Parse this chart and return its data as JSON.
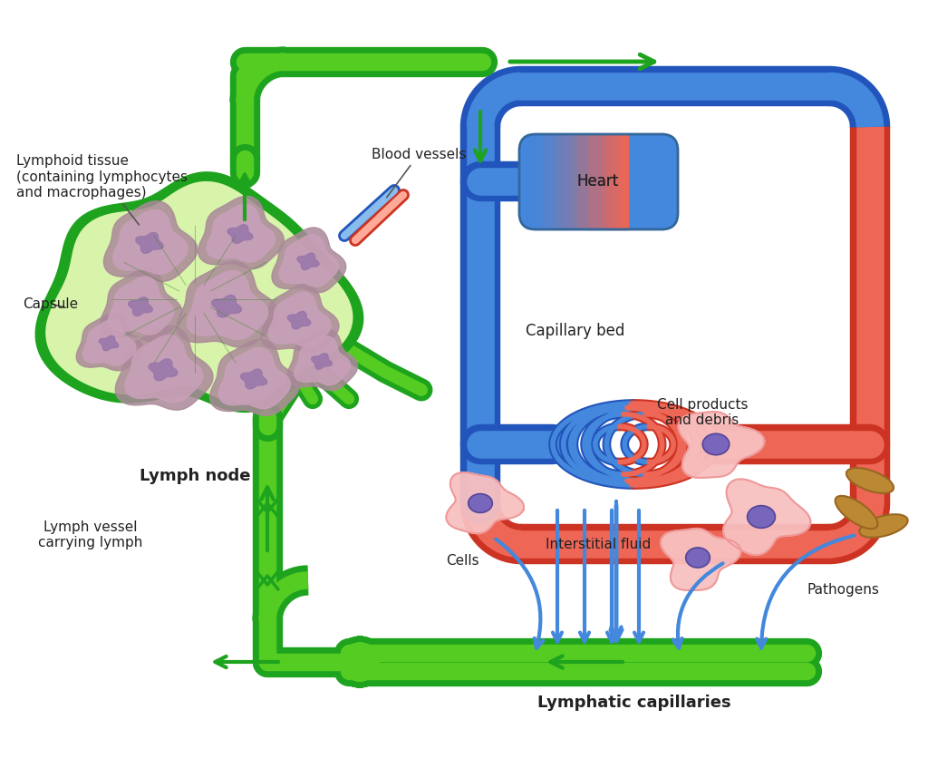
{
  "bg_color": "#ffffff",
  "green_dark": "#1da31d",
  "green_mid": "#55cc22",
  "green_light": "#aaee66",
  "green_fill": "#d8f4aa",
  "blue_dark": "#2255bb",
  "blue_mid": "#4488dd",
  "blue_light": "#88bbee",
  "red_dark": "#cc3322",
  "red_mid": "#ee6655",
  "red_light": "#ffaa99",
  "cell_pink": "#f8c0c0",
  "cell_border": "#ee9999",
  "nucleus_col": "#7766bb",
  "nucleus_border": "#554499",
  "follicle_fill": "#c8a0b8",
  "follicle_border": "#aa8899",
  "pathogen_col": "#bb8833",
  "text_color": "#222222",
  "arrow_blue": "#4488dd",
  "labels": {
    "lymphoid_tissue": "Lymphoid tissue\n(containing lymphocytes\nand macrophages)",
    "capsule": "Capsule",
    "blood_vessels": "Blood vessels",
    "lymph_node": "Lymph node",
    "heart": "Heart",
    "capillary_bed": "Capillary bed",
    "interstitial_fluid": "Interstitial fluid",
    "cells": "Cells",
    "cell_products": "Cell products\nand debris",
    "pathogens": "Pathogens",
    "lymph_vessel": "Lymph vessel\ncarrying lymph",
    "lymphatic_capillaries": "Lymphatic capillaries"
  }
}
